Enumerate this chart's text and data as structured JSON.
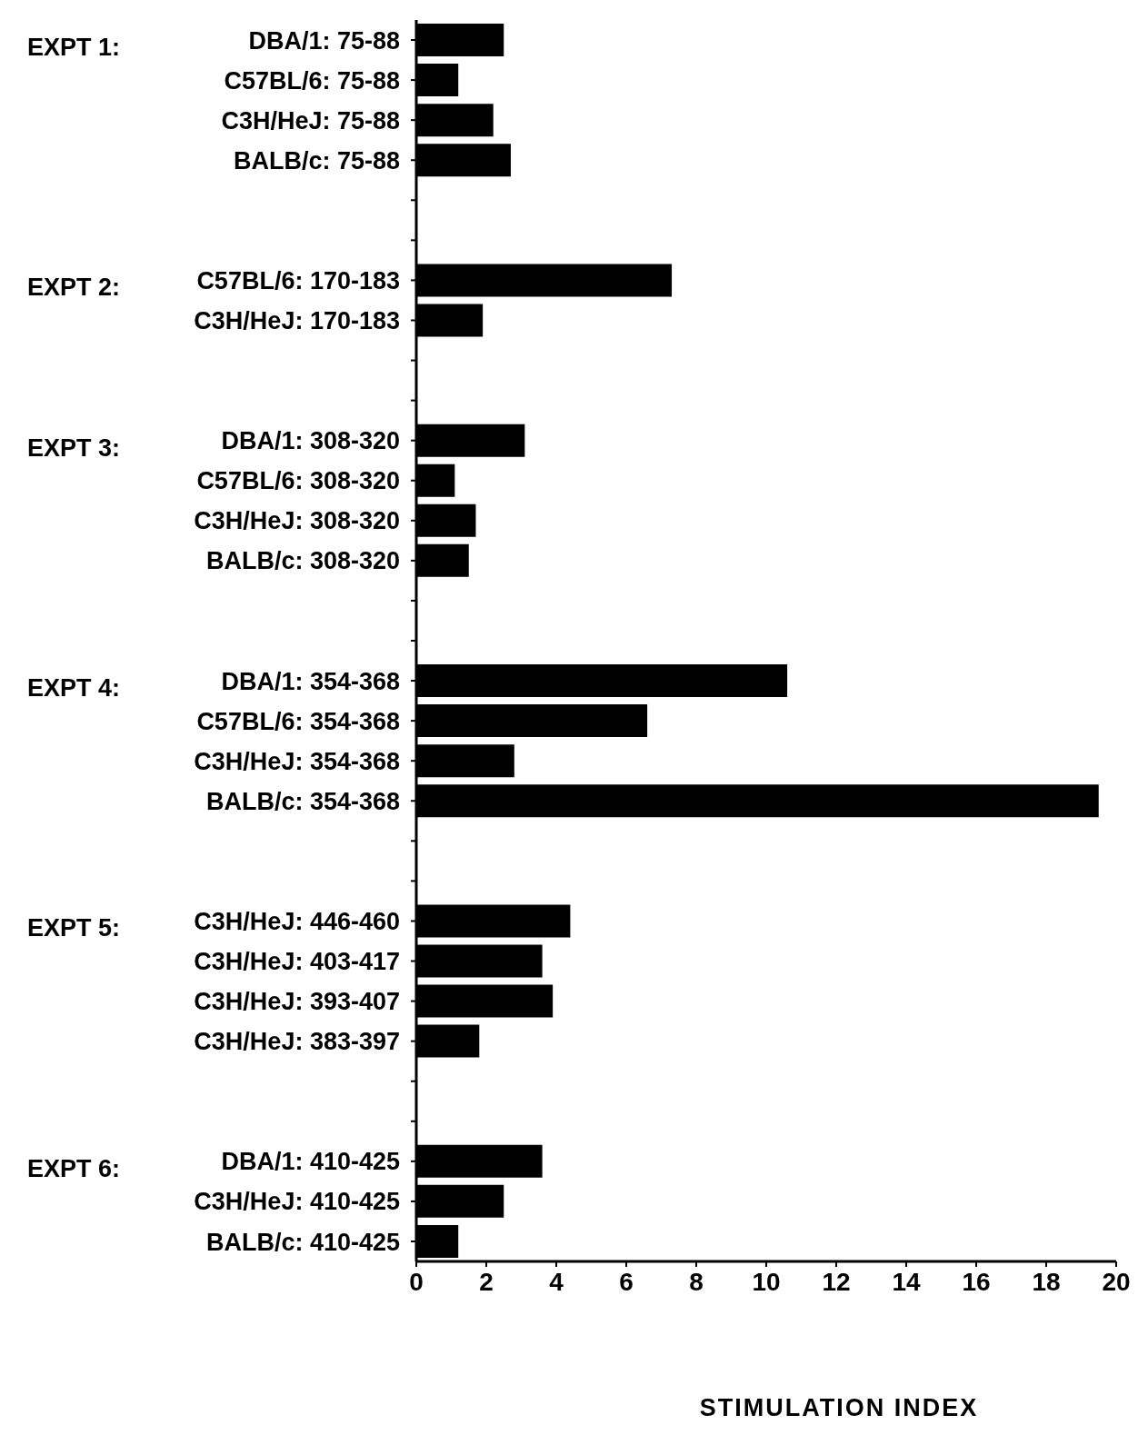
{
  "chart_data": {
    "type": "bar",
    "orientation": "horizontal",
    "xlabel": "STIMULATION INDEX",
    "categories": [
      "DBA/1:  75-88",
      "C57BL/6:  75-88",
      "C3H/HeJ:  75-88",
      "BALB/c:  75-88",
      null,
      null,
      "C57BL/6: 170-183",
      "C3H/HeJ: 170-183",
      null,
      null,
      "DBA/1: 308-320",
      "C57BL/6: 308-320",
      "C3H/HeJ: 308-320",
      "BALB/c: 308-320",
      null,
      null,
      "DBA/1: 354-368",
      "C57BL/6: 354-368",
      "C3H/HeJ: 354-368",
      "BALB/c: 354-368",
      null,
      null,
      "C3H/HeJ: 446-460",
      "C3H/HeJ: 403-417",
      "C3H/HeJ: 393-407",
      "C3H/HeJ: 383-397",
      null,
      null,
      "DBA/1: 410-425",
      "C3H/HeJ: 410-425",
      "BALB/c: 410-425"
    ],
    "values": [
      2.5,
      1.2,
      2.2,
      2.7,
      null,
      null,
      7.3,
      1.9,
      null,
      null,
      3.1,
      1.1,
      1.7,
      1.5,
      null,
      null,
      10.6,
      6.6,
      2.8,
      19.5,
      null,
      null,
      4.4,
      3.6,
      3.9,
      1.8,
      null,
      null,
      3.6,
      2.5,
      1.2
    ],
    "color": "#000000",
    "xlim": [
      0,
      20
    ],
    "xticks": [
      0,
      2,
      4,
      6,
      8,
      10,
      12,
      14,
      16,
      18,
      20
    ],
    "annotations": [
      "EXPT 1:",
      "EXPT 2:",
      "EXPT 3:",
      "EXPT 4:",
      "EXPT 5:",
      "EXPT 6:"
    ]
  }
}
